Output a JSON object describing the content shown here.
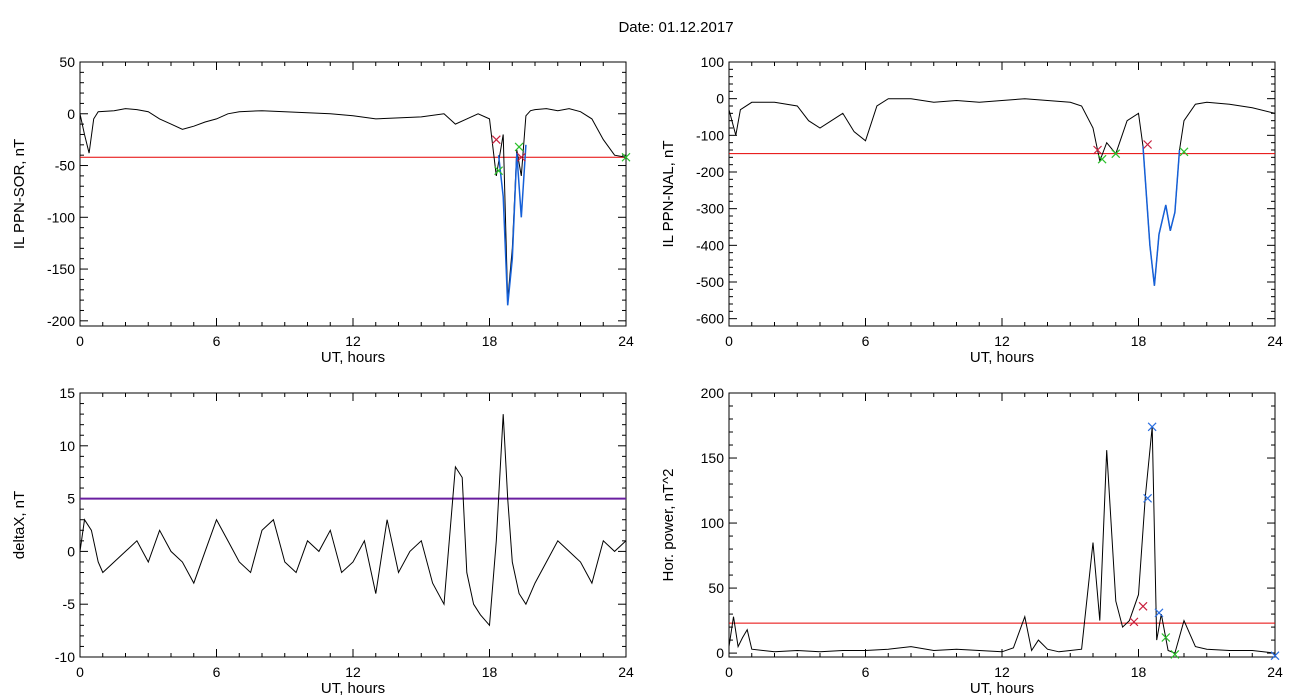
{
  "title": "Date:  01.12.2017",
  "colors": {
    "trace": "#000000",
    "threshold": "#e60000",
    "highlight": "#1560d8",
    "marker_start": "#c81e3c",
    "marker_end": "#2ac02a",
    "marker_peak": "#2a6ee0",
    "threshold_purple": "#6a1fa0"
  },
  "chart_data": [
    {
      "type": "line",
      "xlabel": "UT, hours",
      "ylabel": "IL PPN-SOR, nT",
      "xlim": [
        0,
        24
      ],
      "ylim": [
        -205,
        50
      ],
      "xticks": [
        0,
        6,
        12,
        18,
        24
      ],
      "yticks": [
        50,
        0,
        -50,
        -100,
        -150,
        -200
      ],
      "threshold": -42,
      "series": [
        {
          "x": [
            0,
            0.2,
            0.4,
            0.6,
            0.8,
            1.5,
            2,
            2.5,
            3,
            3.5,
            4,
            4.5,
            5,
            5.5,
            6,
            6.5,
            7,
            8,
            9,
            10,
            11,
            12,
            13,
            14,
            15,
            16,
            16.5,
            17,
            17.5,
            18,
            18.3,
            18.6,
            18.8,
            19,
            19.2,
            19.4,
            19.6,
            19.8,
            20,
            20.5,
            21,
            21.5,
            22,
            22.5,
            23,
            23.5,
            24
          ],
          "y": [
            0,
            -20,
            -38,
            -5,
            2,
            3,
            5,
            4,
            2,
            -5,
            -10,
            -15,
            -12,
            -8,
            -5,
            0,
            2,
            3,
            2,
            1,
            0,
            -2,
            -5,
            -4,
            -3,
            0,
            -10,
            -5,
            0,
            -5,
            -60,
            -20,
            -180,
            -130,
            -35,
            -60,
            -2,
            3,
            4,
            5,
            3,
            5,
            2,
            -5,
            -25,
            -40,
            -42
          ]
        }
      ],
      "highlight": {
        "x": [
          18.4,
          18.6,
          18.8,
          19.0,
          19.2,
          19.4,
          19.6
        ],
        "y": [
          -40,
          -80,
          -185,
          -140,
          -38,
          -100,
          -30
        ]
      },
      "markers": [
        {
          "kind": "start",
          "points": [
            [
              18.3,
              -25
            ],
            [
              19.4,
              -42
            ]
          ]
        },
        {
          "kind": "end",
          "points": [
            [
              18.4,
              -55
            ],
            [
              19.3,
              -32
            ],
            [
              24,
              -42
            ]
          ]
        }
      ]
    },
    {
      "type": "line",
      "xlabel": "UT, hours",
      "ylabel": "IL PPN-NAL, nT",
      "xlim": [
        0,
        24
      ],
      "ylim": [
        -620,
        100
      ],
      "xticks": [
        0,
        6,
        12,
        18,
        24
      ],
      "yticks": [
        100,
        0,
        -100,
        -200,
        -300,
        -400,
        -500,
        -600
      ],
      "threshold": -150,
      "series": [
        {
          "x": [
            0,
            0.3,
            0.5,
            1,
            2,
            3,
            3.5,
            4,
            4.5,
            5,
            5.5,
            6,
            6.5,
            7,
            8,
            9,
            10,
            11,
            12,
            13,
            14,
            15,
            15.5,
            16,
            16.3,
            16.6,
            17,
            17.5,
            18,
            18.2,
            18.5,
            18.7,
            18.9,
            19.2,
            19.4,
            19.6,
            19.8,
            20,
            20.5,
            21,
            22,
            23,
            24
          ],
          "y": [
            -30,
            -100,
            -30,
            -10,
            -10,
            -20,
            -60,
            -80,
            -60,
            -40,
            -90,
            -115,
            -20,
            0,
            0,
            -10,
            -5,
            -10,
            -5,
            0,
            -5,
            -10,
            -20,
            -80,
            -170,
            -120,
            -150,
            -60,
            -40,
            -130,
            -400,
            -510,
            -370,
            -290,
            -360,
            -310,
            -140,
            -60,
            -15,
            -10,
            -15,
            -25,
            -40
          ]
        }
      ],
      "highlight": {
        "x": [
          18.2,
          18.5,
          18.7,
          18.9,
          19.2,
          19.4,
          19.6,
          19.8
        ],
        "y": [
          -130,
          -400,
          -510,
          -370,
          -290,
          -360,
          -310,
          -140
        ]
      },
      "markers": [
        {
          "kind": "start",
          "points": [
            [
              16.2,
              -140
            ],
            [
              18.4,
              -125
            ]
          ]
        },
        {
          "kind": "end",
          "points": [
            [
              16.4,
              -165
            ],
            [
              17.0,
              -150
            ],
            [
              20.0,
              -145
            ]
          ]
        }
      ]
    },
    {
      "type": "line",
      "xlabel": "UT, hours",
      "ylabel": "deltaX, nT",
      "xlim": [
        0,
        24
      ],
      "ylim": [
        -10,
        15
      ],
      "xticks": [
        0,
        6,
        12,
        18,
        24
      ],
      "yticks": [
        15,
        10,
        5,
        0,
        -5,
        -10
      ],
      "threshold": 5,
      "series": [
        {
          "x": [
            0,
            0.2,
            0.5,
            0.8,
            1,
            1.5,
            2,
            2.5,
            3,
            3.5,
            4,
            4.5,
            5,
            5.5,
            6,
            6.5,
            7,
            7.5,
            8,
            8.5,
            9,
            9.5,
            10,
            10.5,
            11,
            11.5,
            12,
            12.5,
            13,
            13.5,
            14,
            14.5,
            15,
            15.5,
            16,
            16.5,
            16.8,
            17,
            17.3,
            17.6,
            18,
            18.3,
            18.6,
            18.8,
            19,
            19.3,
            19.6,
            20,
            20.5,
            21,
            21.5,
            22,
            22.5,
            23,
            23.5,
            24
          ],
          "y": [
            0,
            3,
            2,
            -1,
            -2,
            -1,
            0,
            1,
            -1,
            2,
            0,
            -1,
            -3,
            0,
            3,
            1,
            -1,
            -2,
            2,
            3,
            -1,
            -2,
            1,
            0,
            2,
            -2,
            -1,
            1,
            -4,
            3,
            -2,
            0,
            1,
            -3,
            -5,
            8,
            7,
            -2,
            -5,
            -6,
            -7,
            1,
            13,
            5,
            -1,
            -4,
            -5,
            -3,
            -1,
            1,
            0,
            -1,
            -3,
            1,
            0,
            1
          ]
        }
      ],
      "markers": []
    },
    {
      "type": "line",
      "xlabel": "UT, hours",
      "ylabel": "Hor. power, nT^2",
      "xlim": [
        0,
        24
      ],
      "ylim": [
        -3,
        200
      ],
      "xticks": [
        0,
        6,
        12,
        18,
        24
      ],
      "yticks": [
        200,
        150,
        100,
        50,
        0
      ],
      "threshold": 23,
      "series": [
        {
          "x": [
            0,
            0.2,
            0.4,
            0.6,
            0.8,
            1,
            2,
            3,
            4,
            5,
            6,
            7,
            8,
            9,
            10,
            11,
            12,
            12.5,
            13,
            13.3,
            13.6,
            14,
            14.5,
            15,
            15.5,
            16,
            16.3,
            16.6,
            17,
            17.3,
            17.6,
            18,
            18.3,
            18.6,
            18.8,
            19,
            19.3,
            19.6,
            20,
            20.5,
            21,
            22,
            23,
            24
          ],
          "y": [
            5,
            28,
            5,
            12,
            18,
            3,
            1,
            2,
            1,
            2,
            2,
            3,
            5,
            2,
            3,
            2,
            1,
            4,
            28,
            2,
            10,
            3,
            1,
            2,
            3,
            85,
            25,
            156,
            40,
            20,
            25,
            45,
            120,
            174,
            10,
            30,
            2,
            0,
            25,
            5,
            3,
            2,
            2,
            0
          ]
        }
      ],
      "markers": [
        {
          "kind": "start",
          "points": [
            [
              17.8,
              24
            ],
            [
              18.2,
              36
            ]
          ]
        },
        {
          "kind": "peak",
          "points": [
            [
              18.4,
              119
            ],
            [
              18.6,
              174
            ],
            [
              18.9,
              31
            ],
            [
              24,
              -2
            ]
          ]
        },
        {
          "kind": "end",
          "points": [
            [
              19.2,
              12
            ],
            [
              19.6,
              -1
            ]
          ]
        }
      ]
    }
  ]
}
